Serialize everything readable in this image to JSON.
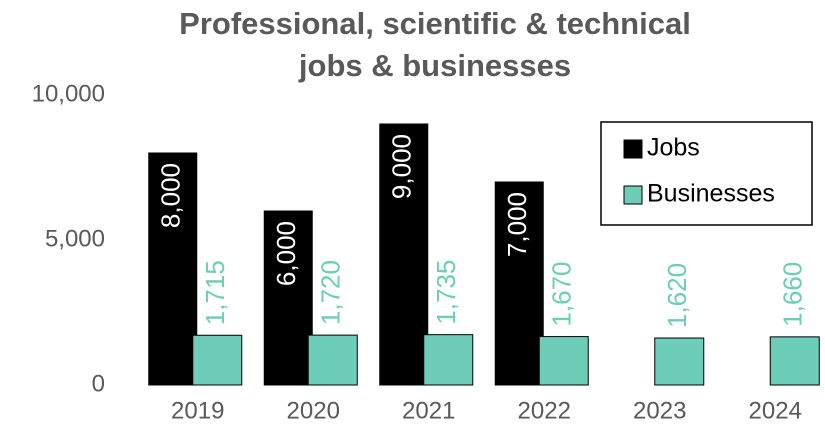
{
  "chart_data": {
    "type": "bar",
    "title": [
      "Professional, scientific & technical",
      "jobs & businesses"
    ],
    "categories": [
      "2019",
      "2020",
      "2021",
      "2022",
      "2023",
      "2024"
    ],
    "series": [
      {
        "name": "Jobs",
        "color": "#000000",
        "values": [
          8000,
          6000,
          9000,
          7000,
          null,
          null
        ],
        "value_labels": [
          "8,000",
          "6,000",
          "9,000",
          "7,000",
          null,
          null
        ]
      },
      {
        "name": "Businesses",
        "color": "#6dcdb8",
        "values": [
          1715,
          1720,
          1735,
          1670,
          1620,
          1660
        ],
        "value_labels": [
          "1,715",
          "1,720",
          "1,735",
          "1,670",
          "1,620",
          "1,660"
        ]
      }
    ],
    "ylim": [
      0,
      10000
    ],
    "yticks": [
      0,
      {
        "value": 5000,
        "label": "5,000"
      },
      {
        "value": 10000,
        "label": "10,000"
      }
    ],
    "grid": false,
    "legend": "upper right"
  }
}
